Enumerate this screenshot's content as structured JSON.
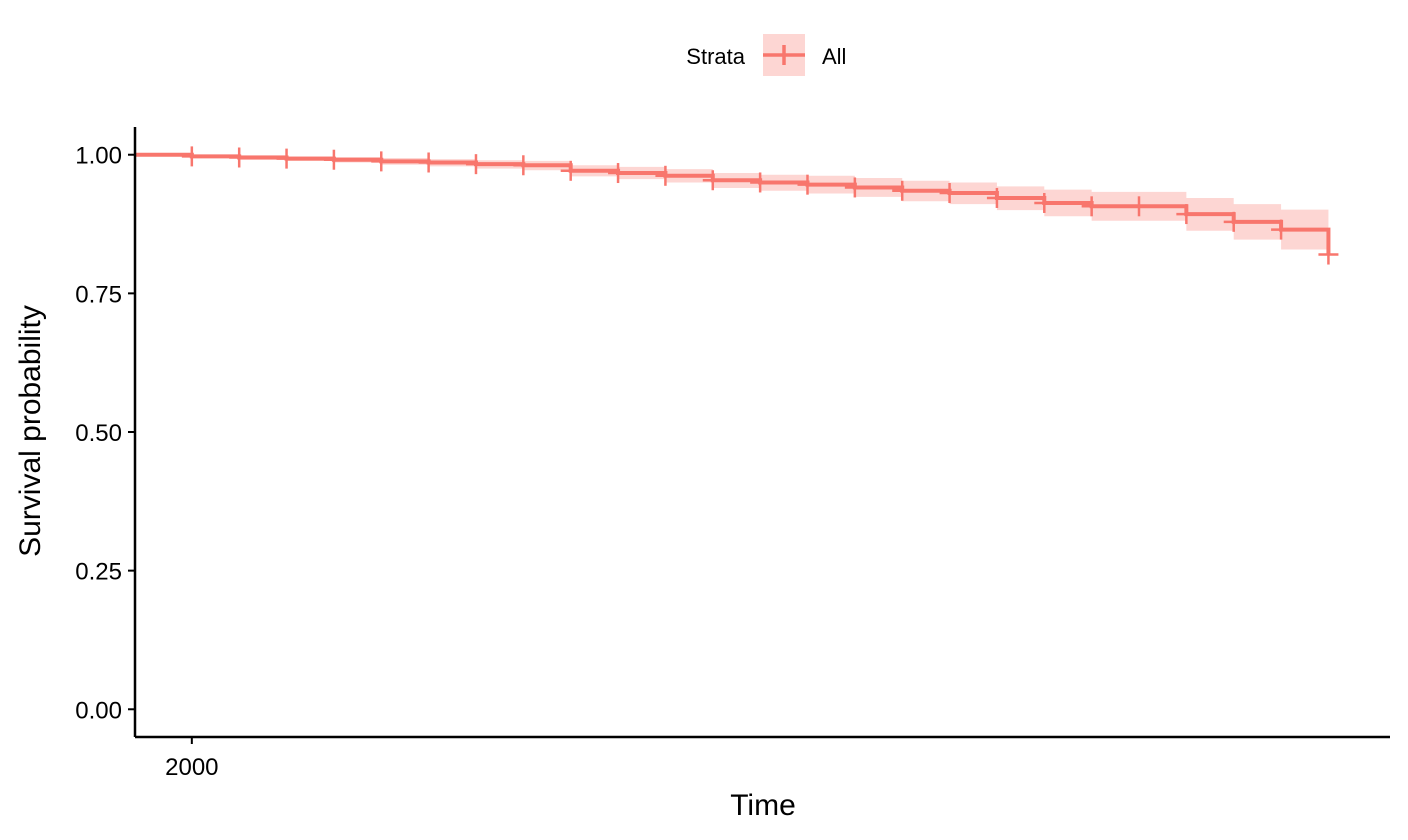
{
  "chart_data": {
    "type": "line",
    "subtype": "kaplan-meier-survival",
    "title": "",
    "xlabel": "Time",
    "ylabel": "Survival probability",
    "x_ticks": [
      2000
    ],
    "x_tick_labels": [
      "2000"
    ],
    "y_ticks": [
      0,
      0.25,
      0.5,
      0.75,
      1
    ],
    "y_tick_labels": [
      "0.00",
      "0.25",
      "0.50",
      "0.75",
      "1.00"
    ],
    "xlim": [
      1998.8,
      2025.3
    ],
    "ylim": [
      -0.05,
      1.05
    ],
    "grid": false,
    "legend": {
      "title": "Strata",
      "position": "top",
      "entries": [
        "All"
      ]
    },
    "colors": {
      "line": "#F8766D",
      "band": "#F8766D"
    },
    "series": [
      {
        "name": "All",
        "steps": [
          {
            "x": 1998.8,
            "y": 1.0,
            "lower": 1.0,
            "upper": 1.0
          },
          {
            "x": 2000.0,
            "y": 0.997,
            "lower": 0.994,
            "upper": 1.0
          },
          {
            "x": 2001.0,
            "y": 0.995,
            "lower": 0.991,
            "upper": 0.999
          },
          {
            "x": 2002.0,
            "y": 0.993,
            "lower": 0.989,
            "upper": 0.997
          },
          {
            "x": 2003.0,
            "y": 0.991,
            "lower": 0.986,
            "upper": 0.996
          },
          {
            "x": 2004.0,
            "y": 0.988,
            "lower": 0.982,
            "upper": 0.994
          },
          {
            "x": 2005.0,
            "y": 0.986,
            "lower": 0.979,
            "upper": 0.992
          },
          {
            "x": 2006.0,
            "y": 0.983,
            "lower": 0.975,
            "upper": 0.99
          },
          {
            "x": 2007.0,
            "y": 0.981,
            "lower": 0.972,
            "upper": 0.989
          },
          {
            "x": 2008.0,
            "y": 0.971,
            "lower": 0.961,
            "upper": 0.981
          },
          {
            "x": 2009.0,
            "y": 0.967,
            "lower": 0.956,
            "upper": 0.978
          },
          {
            "x": 2010.0,
            "y": 0.962,
            "lower": 0.95,
            "upper": 0.974
          },
          {
            "x": 2011.0,
            "y": 0.954,
            "lower": 0.94,
            "upper": 0.967
          },
          {
            "x": 2012.0,
            "y": 0.95,
            "lower": 0.935,
            "upper": 0.964
          },
          {
            "x": 2013.0,
            "y": 0.946,
            "lower": 0.93,
            "upper": 0.962
          },
          {
            "x": 2014.0,
            "y": 0.941,
            "lower": 0.924,
            "upper": 0.958
          },
          {
            "x": 2015.0,
            "y": 0.935,
            "lower": 0.916,
            "upper": 0.953
          },
          {
            "x": 2016.0,
            "y": 0.931,
            "lower": 0.911,
            "upper": 0.95
          },
          {
            "x": 2017.0,
            "y": 0.922,
            "lower": 0.9,
            "upper": 0.943
          },
          {
            "x": 2018.0,
            "y": 0.913,
            "lower": 0.889,
            "upper": 0.937
          },
          {
            "x": 2019.0,
            "y": 0.907,
            "lower": 0.881,
            "upper": 0.933
          },
          {
            "x": 2020.0,
            "y": 0.907,
            "lower": 0.881,
            "upper": 0.933
          },
          {
            "x": 2021.0,
            "y": 0.893,
            "lower": 0.863,
            "upper": 0.922
          },
          {
            "x": 2022.0,
            "y": 0.879,
            "lower": 0.847,
            "upper": 0.911
          },
          {
            "x": 2023.0,
            "y": 0.865,
            "lower": 0.829,
            "upper": 0.901
          },
          {
            "x": 2024.0,
            "y": 0.82,
            "lower": 0.82,
            "upper": 0.82
          }
        ],
        "x_end": 2024.0,
        "censored": [
          {
            "x": 2000.0,
            "y": 0.997
          },
          {
            "x": 2001.0,
            "y": 0.995
          },
          {
            "x": 2002.0,
            "y": 0.993
          },
          {
            "x": 2003.0,
            "y": 0.991
          },
          {
            "x": 2004.0,
            "y": 0.988
          },
          {
            "x": 2005.0,
            "y": 0.986
          },
          {
            "x": 2006.0,
            "y": 0.983
          },
          {
            "x": 2007.0,
            "y": 0.981
          },
          {
            "x": 2008.0,
            "y": 0.971
          },
          {
            "x": 2009.0,
            "y": 0.967
          },
          {
            "x": 2010.0,
            "y": 0.962
          },
          {
            "x": 2011.0,
            "y": 0.954
          },
          {
            "x": 2012.0,
            "y": 0.95
          },
          {
            "x": 2013.0,
            "y": 0.946
          },
          {
            "x": 2014.0,
            "y": 0.941
          },
          {
            "x": 2015.0,
            "y": 0.935
          },
          {
            "x": 2016.0,
            "y": 0.931
          },
          {
            "x": 2017.0,
            "y": 0.922
          },
          {
            "x": 2018.0,
            "y": 0.913
          },
          {
            "x": 2019.0,
            "y": 0.907
          },
          {
            "x": 2020.0,
            "y": 0.907
          },
          {
            "x": 2021.0,
            "y": 0.893
          },
          {
            "x": 2022.0,
            "y": 0.879
          },
          {
            "x": 2023.0,
            "y": 0.865
          },
          {
            "x": 2024.0,
            "y": 0.82
          }
        ]
      }
    ]
  }
}
